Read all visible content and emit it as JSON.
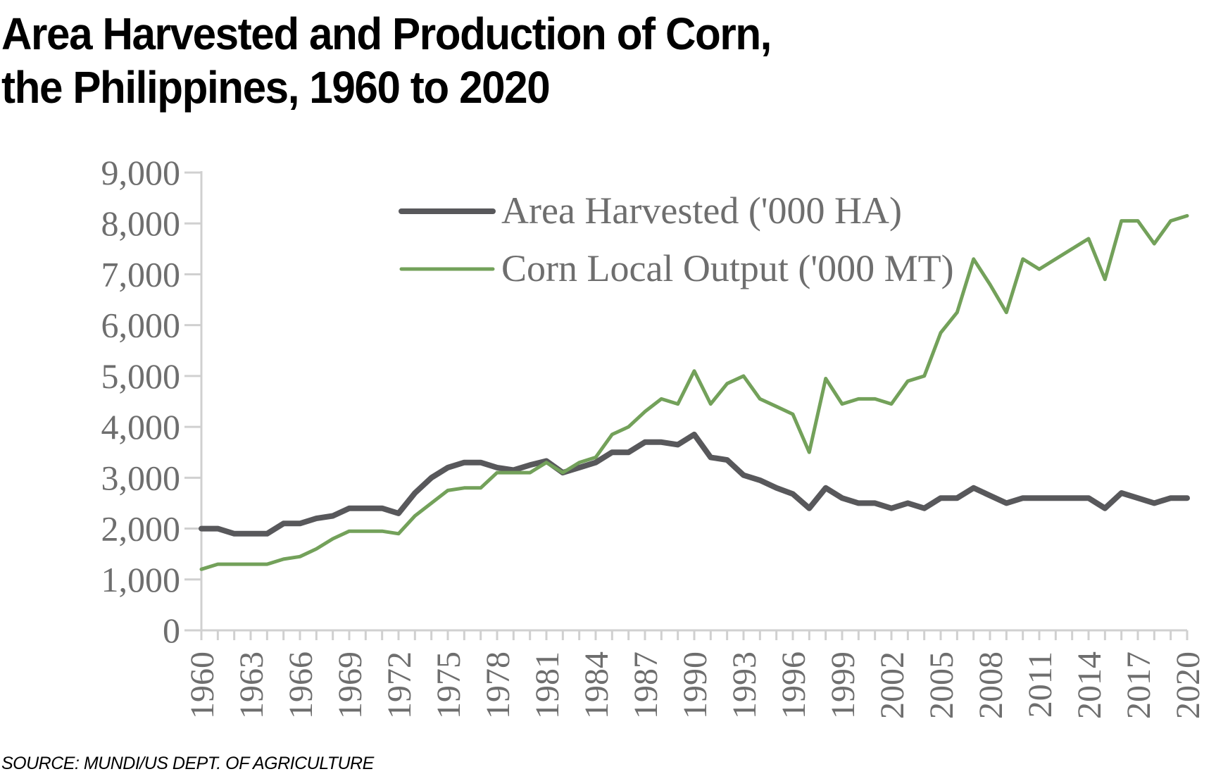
{
  "title_lines": [
    "Area Harvested and Production of Corn,",
    "the Philippines, 1960 to 2020"
  ],
  "source": "SOURCE: MUNDI/US DEPT. OF AGRICULTURE",
  "chart_data": {
    "type": "line",
    "title": "Area Harvested and Production of Corn, the Philippines, 1960 to 2020",
    "xlabel": "",
    "ylabel": "",
    "ylim": [
      0,
      9000
    ],
    "xlim": [
      1960,
      2020
    ],
    "y_ticks": [
      "0",
      "1,000",
      "2,000",
      "3,000",
      "4,000",
      "5,000",
      "6,000",
      "7,000",
      "8,000",
      "9,000"
    ],
    "x_tick_labels": [
      "1960",
      "1963",
      "1966",
      "1969",
      "1972",
      "1975",
      "1978",
      "1981",
      "1984",
      "1987",
      "1990",
      "1993",
      "1996",
      "1999",
      "2002",
      "2005",
      "2008",
      "2011",
      "2014",
      "2017",
      "2020"
    ],
    "grid": false,
    "legend_position": "top-center",
    "x": [
      1960,
      1961,
      1962,
      1963,
      1964,
      1965,
      1966,
      1967,
      1968,
      1969,
      1970,
      1971,
      1972,
      1973,
      1974,
      1975,
      1976,
      1977,
      1978,
      1979,
      1980,
      1981,
      1982,
      1983,
      1984,
      1985,
      1986,
      1987,
      1988,
      1989,
      1990,
      1991,
      1992,
      1993,
      1994,
      1995,
      1996,
      1997,
      1998,
      1999,
      2000,
      2001,
      2002,
      2003,
      2004,
      2005,
      2006,
      2007,
      2008,
      2009,
      2010,
      2011,
      2012,
      2013,
      2014,
      2015,
      2016,
      2017,
      2018,
      2019,
      2020
    ],
    "series": [
      {
        "name": "Area Harvested ('000 HA)",
        "color": "#58585b",
        "values": [
          2000,
          2000,
          1900,
          1900,
          1900,
          2100,
          2100,
          2200,
          2250,
          2400,
          2400,
          2400,
          2300,
          2700,
          3000,
          3200,
          3300,
          3300,
          3200,
          3150,
          3250,
          3330,
          3100,
          3200,
          3300,
          3500,
          3500,
          3700,
          3700,
          3650,
          3850,
          3400,
          3350,
          3050,
          2950,
          2800,
          2680,
          2400,
          2800,
          2600,
          2500,
          2500,
          2400,
          2500,
          2400,
          2600,
          2600,
          2800,
          2650,
          2500,
          2600,
          2600,
          2600,
          2600,
          2600,
          2400,
          2700,
          2600,
          2500,
          2600,
          2600
        ]
      },
      {
        "name": "Corn Local Output ('000 MT)",
        "color": "#73a15a",
        "values": [
          1200,
          1300,
          1300,
          1300,
          1300,
          1400,
          1450,
          1600,
          1800,
          1950,
          1950,
          1950,
          1900,
          2250,
          2500,
          2750,
          2800,
          2800,
          3100,
          3100,
          3100,
          3300,
          3100,
          3300,
          3400,
          3850,
          4000,
          4300,
          4550,
          4450,
          5100,
          4450,
          4850,
          5000,
          4550,
          4400,
          4250,
          3500,
          4950,
          4450,
          4550,
          4550,
          4450,
          4900,
          5000,
          5850,
          6250,
          7300,
          6800,
          6250,
          7300,
          7100,
          7300,
          7500,
          7700,
          6900,
          8050,
          8050,
          7600,
          8050,
          8150
        ]
      }
    ]
  }
}
